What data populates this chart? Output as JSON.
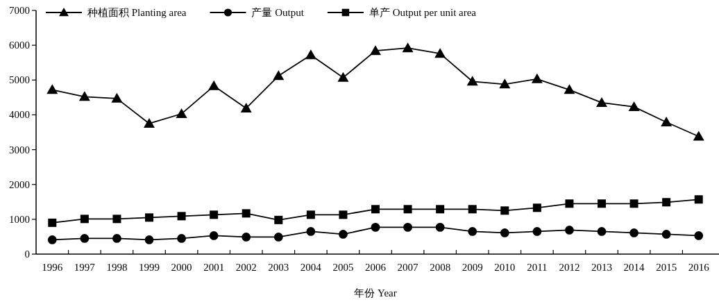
{
  "chart_data": {
    "type": "line",
    "xlabel": "年份 Year",
    "categories": [
      "1996",
      "1997",
      "1998",
      "1999",
      "2000",
      "2001",
      "2002",
      "2003",
      "2004",
      "2005",
      "2006",
      "2007",
      "2008",
      "2009",
      "2010",
      "2011",
      "2012",
      "2013",
      "2014",
      "2015",
      "2016"
    ],
    "series": [
      {
        "name": "种植面积 Planting area",
        "color": "#000000",
        "marker": "triangle",
        "values": [
          4720,
          4520,
          4470,
          3750,
          4030,
          4830,
          4190,
          5120,
          5720,
          5070,
          5840,
          5920,
          5760,
          4960,
          4880,
          5030,
          4720,
          4350,
          4230,
          3790,
          3380
        ]
      },
      {
        "name": "产量 Output",
        "color": "#000000",
        "marker": "circle",
        "values": [
          410,
          450,
          450,
          410,
          450,
          530,
          490,
          490,
          650,
          570,
          770,
          770,
          770,
          650,
          610,
          650,
          690,
          650,
          610,
          570,
          530
        ]
      },
      {
        "name": "单产 Output per unit area",
        "color": "#000000",
        "marker": "square",
        "values": [
          900,
          1010,
          1010,
          1050,
          1090,
          1130,
          1170,
          980,
          1130,
          1130,
          1290,
          1290,
          1290,
          1290,
          1250,
          1330,
          1450,
          1450,
          1450,
          1490,
          1570
        ]
      }
    ],
    "ylim": [
      0,
      7000
    ],
    "yticks": [
      0,
      1000,
      2000,
      3000,
      4000,
      5000,
      6000,
      7000
    ],
    "legend": "top",
    "grid": false,
    "line_style": "solid"
  }
}
